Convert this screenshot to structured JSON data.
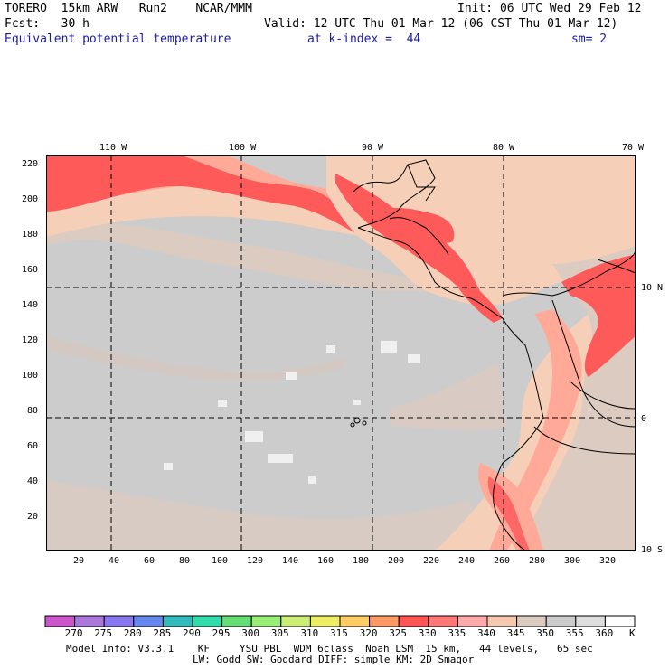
{
  "header": {
    "line1_left": "TORERO  15km ARW   Run2    NCAR/MMM",
    "line1_right": "Init: 06 UTC Wed 29 Feb 12",
    "line2_left": "Fcst:   30 h",
    "line2_right": "Valid: 12 UTC Thu 01 Mar 12 (06 CST Thu 01 Mar 12)",
    "field_title": "Equivalent potential temperature",
    "level": "at k-index =  44",
    "smoothing": "sm= 2"
  },
  "map": {
    "top_lon_labels": [
      "110 W",
      "100 W",
      "90 W",
      "80 W",
      "70 W"
    ],
    "right_lat_labels": [
      "10 N",
      "0",
      "10 S"
    ],
    "y_grid_labels": [
      "220",
      "200",
      "180",
      "160",
      "140",
      "120",
      "100",
      "80",
      "60",
      "40",
      "20"
    ],
    "x_grid_labels": [
      "20",
      "40",
      "60",
      "80",
      "100",
      "120",
      "140",
      "160",
      "180",
      "200",
      "220",
      "240",
      "260",
      "280",
      "300",
      "320"
    ]
  },
  "legend": {
    "labels": [
      "270",
      "275",
      "280",
      "285",
      "290",
      "295",
      "300",
      "305",
      "310",
      "315",
      "320",
      "325",
      "330",
      "335",
      "340",
      "345",
      "350",
      "355",
      "360"
    ],
    "unit": "K",
    "colors": [
      "#cc55cc",
      "#aa77dd",
      "#8877ee",
      "#6688ee",
      "#33bbbb",
      "#33ddaa",
      "#66dd77",
      "#99ee77",
      "#ccee77",
      "#eeee66",
      "#ffcc66",
      "#ff9966",
      "#ff5555",
      "#ff7777",
      "#ffaaaa",
      "#f5c8b0",
      "#dccbc0",
      "#cccccc",
      "#dddddd",
      "#ffffff"
    ]
  },
  "footer": {
    "line1": "Model Info: V3.3.1    KF     YSU PBL  WDM 6class  Noah LSM  15 km,   44 levels,   65 sec",
    "line2": "LW: Godd SW: Goddard DIFF: simple KM: 2D Smagor"
  },
  "colors": {
    "ocean": "#cccccc",
    "tan": "#dccbc0",
    "peach": "#f5cfb8",
    "salmon": "#ffaa99",
    "red": "#ff5a5a",
    "white_patch": "#f2f2f2",
    "title_blue": "#1a1aa8"
  }
}
